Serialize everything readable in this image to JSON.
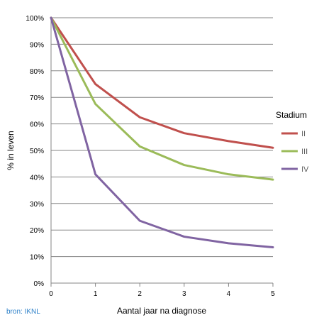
{
  "chart_data": {
    "type": "line",
    "ylabel": "% in leven",
    "xlabel": "Aantal jaar na diagnose",
    "x": [
      0,
      1,
      2,
      3,
      4,
      5
    ],
    "xlim": [
      0,
      5
    ],
    "ylim": [
      0,
      100
    ],
    "y_tick_labels": [
      "0%",
      "10%",
      "20%",
      "30%",
      "40%",
      "50%",
      "60%",
      "70%",
      "80%",
      "90%",
      "100%"
    ],
    "x_tick_labels": [
      "0",
      "1",
      "2",
      "3",
      "4",
      "5"
    ],
    "grid": true,
    "legend": {
      "title": "Stadium",
      "position": "right"
    },
    "series": [
      {
        "name": "II",
        "color": "#c0504d",
        "values": [
          100,
          75,
          62.5,
          56.5,
          53.5,
          51
        ]
      },
      {
        "name": "III",
        "color": "#9bbb59",
        "values": [
          100,
          67.5,
          51.5,
          44.5,
          41,
          39
        ]
      },
      {
        "name": "IV",
        "color": "#8064a2",
        "values": [
          100,
          41,
          23.5,
          17.5,
          15,
          13.5
        ]
      }
    ],
    "source_note": "bron: IKNL"
  }
}
